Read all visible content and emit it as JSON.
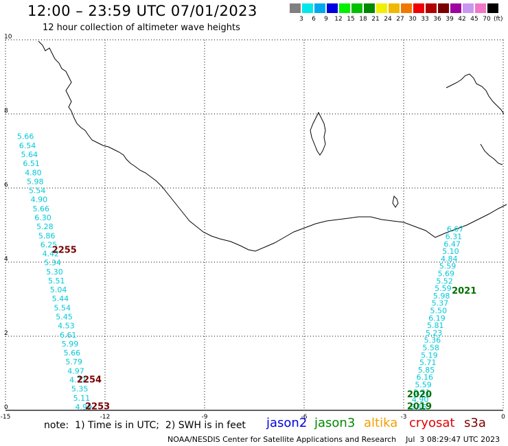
{
  "header": {
    "title": "12:00 – 23:59 UTC 07/01/2023",
    "subtitle": "12 hour collection of altimeter wave heights"
  },
  "legend": {
    "unit": "(ft)",
    "colors": [
      "#808080",
      "#00e8e8",
      "#00a8f0",
      "#0000e0",
      "#00f000",
      "#00c000",
      "#008800",
      "#f0f000",
      "#f0b800",
      "#f07800",
      "#f00000",
      "#b00000",
      "#780000",
      "#a000a0",
      "#c898f0",
      "#f078c8",
      "#000000"
    ],
    "labels": [
      "3",
      "6",
      "9",
      "12",
      "15",
      "18",
      "21",
      "24",
      "27",
      "30",
      "33",
      "36",
      "39",
      "42",
      "45",
      "70"
    ]
  },
  "axes": {
    "x_ticks": [
      "-15",
      "-12",
      "-9",
      "-6",
      "-3",
      "0"
    ],
    "y_ticks": [
      "0",
      "2",
      "4",
      "6",
      "8",
      "10"
    ]
  },
  "tracks": [
    {
      "id": "west",
      "values": [
        "5.66",
        "6.54",
        "5.64",
        "6.51",
        "4.80",
        "5.98",
        "5.54",
        "4.90",
        "5.66",
        "6.30",
        "5.28",
        "5.86",
        "6.25",
        "4.42",
        "5.34",
        "5.30",
        "5.51",
        "5.04",
        "5.44",
        "5.54",
        "5.45",
        "4.53",
        "6.61",
        "5.99",
        "5.66",
        "5.79",
        "4.97",
        "4.77",
        "5.35",
        "5.11",
        "4.99"
      ],
      "start": [
        -14.65,
        7.32
      ],
      "end": [
        -12.9,
        0.02
      ]
    },
    {
      "id": "east",
      "values": [
        "6.67",
        "6.31",
        "6.47",
        "5.10",
        "4.84",
        "5.59",
        "5.69",
        "5.52",
        "5.59",
        "5.98",
        "5.37",
        "5.50",
        "6.19",
        "5.81",
        "5.23",
        "5.36",
        "5.58",
        "5.19",
        "5.71",
        "5.85",
        "6.16",
        "5.59",
        "5.21",
        "4.90",
        "5.15"
      ],
      "start": [
        -1.7,
        4.82
      ],
      "end": [
        -2.8,
        0.02
      ]
    }
  ],
  "pass_labels": [
    {
      "text": "2255",
      "color": "#7a0000",
      "lon": -13.6,
      "lat": 4.25
    },
    {
      "text": "2254",
      "color": "#7a0000",
      "lon": -12.85,
      "lat": 0.75
    },
    {
      "text": "2253",
      "color": "#7a0000",
      "lon": -12.6,
      "lat": 0.03
    },
    {
      "text": "2021",
      "color": "#007000",
      "lon": -1.55,
      "lat": 3.15
    },
    {
      "text": "2020",
      "color": "#007000",
      "lon": -2.9,
      "lat": 0.35
    },
    {
      "text": "2019",
      "color": "#007000",
      "lon": -2.9,
      "lat": 0.03
    }
  ],
  "footer": {
    "note": "note:  1) Time is in UTC;  2) SWH is in feet",
    "satellites": [
      {
        "name": "jason2",
        "color": "#0000e0"
      },
      {
        "name": "jason3",
        "color": "#008800"
      },
      {
        "name": "altika",
        "color": "#f0a000"
      },
      {
        "name": "cryosat",
        "color": "#e00000"
      },
      {
        "name": "s3a",
        "color": "#7a0000"
      }
    ],
    "credit": "NOAA/NESDIS Center for Satellite Applications and Research    Jul  3 08:29:47 UTC 2023"
  }
}
